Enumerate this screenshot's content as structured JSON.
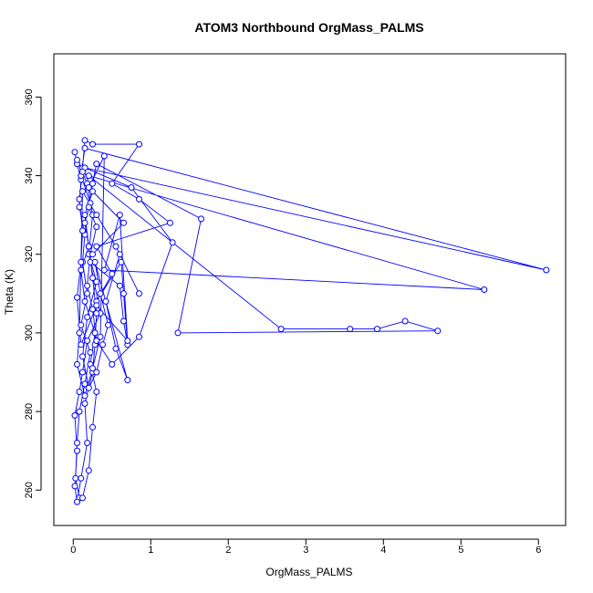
{
  "chart_data": {
    "type": "line",
    "title": "ATOM3 Northbound OrgMass_PALMS",
    "xlabel": "OrgMass_PALMS",
    "ylabel": "Theta (K)",
    "xlim": [
      -0.25,
      6.35
    ],
    "ylim": [
      251,
      371
    ],
    "x_ticks": [
      0,
      1,
      2,
      3,
      4,
      5,
      6
    ],
    "y_ticks": [
      260,
      280,
      300,
      320,
      340,
      360
    ],
    "grid": false,
    "legend": "none",
    "series_color": "#0000ff",
    "series": [
      {
        "points": [
          [
            0.02,
            346
          ],
          [
            0.05,
            343
          ],
          [
            0.1,
            339
          ],
          [
            0.08,
            332
          ],
          [
            0.15,
            325
          ],
          [
            0.12,
            318
          ],
          [
            0.18,
            310
          ],
          [
            0.1,
            302
          ],
          [
            0.22,
            295
          ],
          [
            0.15,
            287
          ],
          [
            0.08,
            280
          ],
          [
            0.05,
            272
          ],
          [
            0.03,
            263
          ],
          [
            0.08,
            258
          ],
          [
            0.12,
            258
          ],
          [
            0.2,
            265
          ],
          [
            0.25,
            276
          ],
          [
            0.3,
            285
          ],
          [
            0.22,
            292
          ],
          [
            0.28,
            300
          ],
          [
            0.15,
            308
          ],
          [
            0.1,
            316
          ],
          [
            0.2,
            322
          ],
          [
            0.15,
            330
          ],
          [
            0.25,
            336
          ],
          [
            0.12,
            342
          ],
          [
            0.15,
            349
          ],
          [
            0.25,
            348
          ],
          [
            0.85,
            348
          ],
          [
            0.5,
            338
          ],
          [
            0.85,
            334
          ],
          [
            1.25,
            328
          ],
          [
            0.3,
            322
          ],
          [
            0.5,
            315
          ],
          [
            0.3,
            308
          ],
          [
            0.62,
            318
          ],
          [
            0.65,
            310
          ],
          [
            0.7,
            297
          ],
          [
            0.65,
            303
          ],
          [
            0.6,
            312
          ],
          [
            0.22,
            318
          ],
          [
            0.35,
            305
          ],
          [
            0.18,
            298
          ],
          [
            0.12,
            290
          ],
          [
            0.08,
            285
          ],
          [
            0.02,
            279
          ],
          [
            0.05,
            270
          ],
          [
            0.02,
            261
          ],
          [
            0.05,
            257
          ],
          [
            0.1,
            263
          ],
          [
            0.18,
            272
          ],
          [
            0.15,
            282
          ],
          [
            0.25,
            290
          ],
          [
            0.28,
            297
          ],
          [
            0.3,
            305
          ],
          [
            0.25,
            314
          ],
          [
            0.2,
            322
          ],
          [
            0.15,
            328
          ],
          [
            0.22,
            333
          ],
          [
            0.1,
            340
          ],
          [
            0.15,
            347
          ],
          [
            6.1,
            316
          ],
          [
            0.15,
            342
          ],
          [
            0.75,
            337
          ],
          [
            1.28,
            323
          ],
          [
            0.85,
            299
          ],
          [
            0.5,
            292
          ],
          [
            0.3,
            298
          ],
          [
            0.25,
            306
          ],
          [
            0.18,
            312
          ],
          [
            0.22,
            320
          ],
          [
            0.3,
            327
          ],
          [
            0.2,
            332
          ],
          [
            0.25,
            338
          ],
          [
            0.3,
            343
          ],
          [
            1.65,
            329
          ],
          [
            1.35,
            300
          ],
          [
            4.7,
            300.5
          ],
          [
            4.28,
            303
          ],
          [
            3.92,
            301
          ],
          [
            3.57,
            301
          ],
          [
            2.68,
            301
          ],
          [
            0.2,
            340
          ],
          [
            5.3,
            311
          ],
          [
            0.4,
            316
          ],
          [
            0.6,
            330
          ],
          [
            0.7,
            298
          ],
          [
            0.3,
            307
          ],
          [
            0.1,
            297
          ],
          [
            0.05,
            309
          ],
          [
            0.1,
            318
          ],
          [
            0.12,
            326
          ],
          [
            0.08,
            334
          ],
          [
            0.12,
            341
          ],
          [
            0.05,
            344
          ],
          [
            0.18,
            338
          ],
          [
            0.25,
            330
          ],
          [
            0.2,
            320
          ],
          [
            0.3,
            313
          ],
          [
            0.18,
            304
          ],
          [
            0.12,
            294
          ],
          [
            0.2,
            286
          ],
          [
            0.3,
            290
          ],
          [
            0.38,
            297
          ],
          [
            0.45,
            302
          ],
          [
            0.35,
            310
          ],
          [
            0.28,
            318
          ],
          [
            0.7,
            288
          ],
          [
            0.55,
            296
          ],
          [
            0.42,
            308
          ],
          [
            0.6,
            320
          ],
          [
            0.85,
            310
          ],
          [
            0.55,
            322
          ],
          [
            0.3,
            330
          ],
          [
            0.12,
            336
          ],
          [
            0.08,
            300
          ],
          [
            0.05,
            292
          ],
          [
            0.15,
            284
          ],
          [
            0.25,
            291
          ],
          [
            0.35,
            299
          ],
          [
            0.4,
            345
          ],
          [
            0.2,
            337
          ],
          [
            0.65,
            328
          ],
          [
            0.25,
            320
          ]
        ]
      }
    ]
  }
}
